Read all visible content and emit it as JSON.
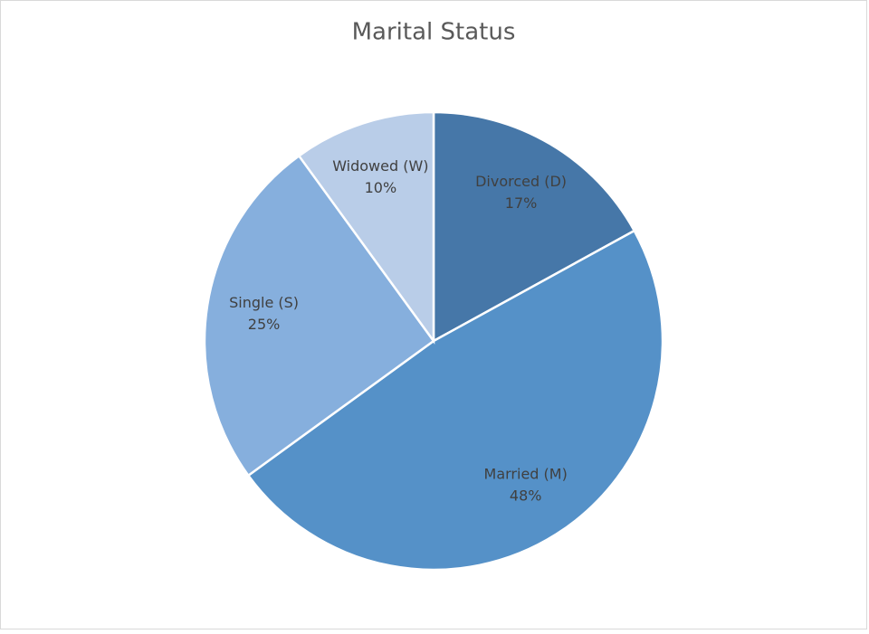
{
  "chart_data": {
    "type": "pie",
    "title": "Marital Status",
    "categories": [
      "Divorced (D)",
      "Married (M)",
      "Single (S)",
      "Widowed (W)"
    ],
    "values": [
      17,
      48,
      25,
      10
    ],
    "value_labels": [
      "17%",
      "48%",
      "25%",
      "10%"
    ],
    "colors": [
      "#4677a8",
      "#5591c8",
      "#86afdd",
      "#b9cde8"
    ]
  }
}
